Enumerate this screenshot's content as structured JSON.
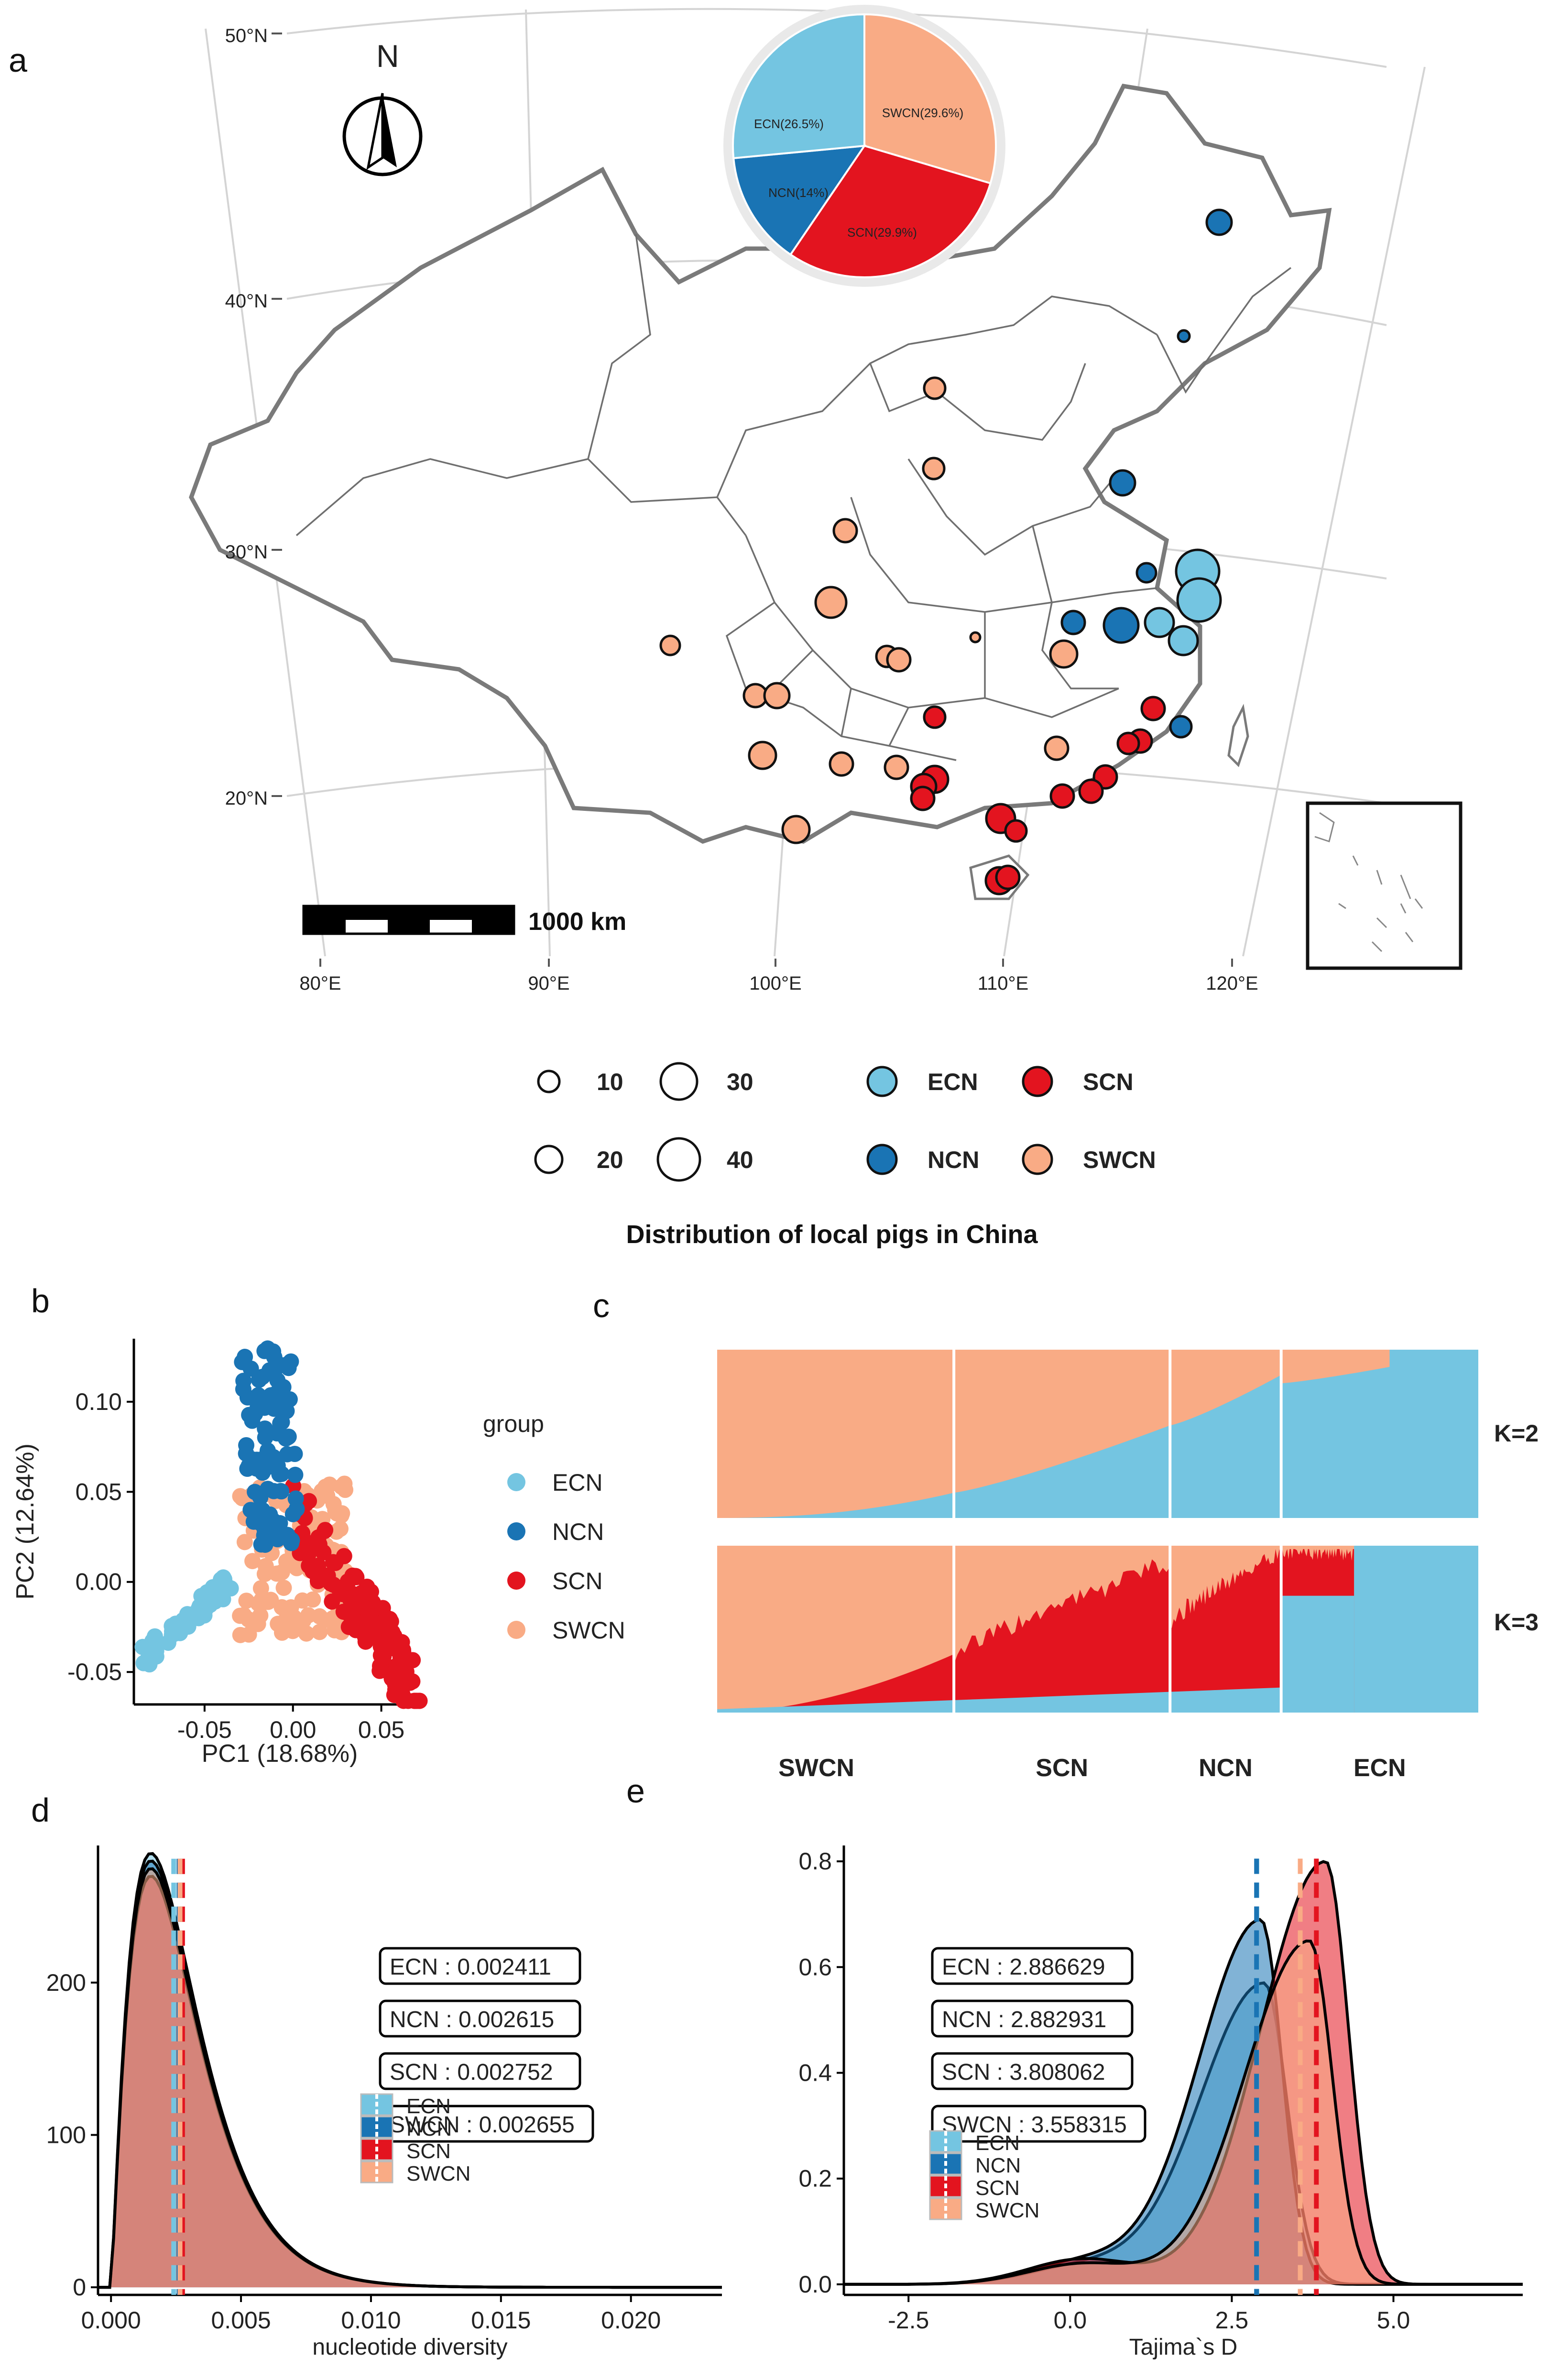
{
  "colors": {
    "ECN": "#74c5e1",
    "NCN": "#1a74b4",
    "SCN": "#e3141f",
    "SWCN": "#f9ab85",
    "background": "#ffffff"
  },
  "panel_letters": [
    "a",
    "b",
    "c",
    "d",
    "e"
  ],
  "map": {
    "compass_label": "N",
    "lat_labels": [
      "50°N",
      "40°N",
      "30°N",
      "20°N"
    ],
    "lon_labels": [
      "80°E",
      "90°E",
      "100°E",
      "110°E",
      "120°E"
    ],
    "scale_bar_label": "1000 km",
    "size_legend": [
      "10",
      "30",
      "20",
      "40"
    ],
    "group_legend": [
      "ECN",
      "SCN",
      "NCN",
      "SWCN"
    ],
    "caption": "Distribution of local pigs in China",
    "pie": {
      "labels": [
        "SWCN(29.6%)",
        "SCN(29.9%)",
        "NCN(14%)",
        "ECN(26.5%)"
      ],
      "percent": [
        29.6,
        29.9,
        14.0,
        26.5
      ]
    }
  },
  "chart_data": [
    {
      "type": "scatter",
      "panel": "b",
      "xlabel": "PC1 (18.68%)",
      "ylabel": "PC2 (12.64%)",
      "xticks": [
        "-0.05",
        "0.00",
        "0.05"
      ],
      "yticks": [
        "-0.05",
        "0.00",
        "0.05",
        "0.10"
      ],
      "xlim": [
        -0.09,
        0.075
      ],
      "ylim": [
        -0.068,
        0.135
      ],
      "legend_title": "group",
      "legend": [
        "ECN",
        "NCN",
        "SCN",
        "SWCN"
      ],
      "clusters": [
        {
          "name": "ECN",
          "x_range": [
            -0.085,
            -0.035
          ],
          "y_range": [
            -0.04,
            0.03
          ]
        },
        {
          "name": "NCN",
          "x_range": [
            -0.03,
            0.01
          ],
          "y_range": [
            0.02,
            0.13
          ]
        },
        {
          "name": "SCN",
          "x_range": [
            0.0,
            0.07
          ],
          "y_range": [
            -0.065,
            0.09
          ]
        },
        {
          "name": "SWCN",
          "x_range": [
            -0.03,
            0.03
          ],
          "y_range": [
            -0.04,
            0.06
          ]
        }
      ]
    },
    {
      "type": "area",
      "panel": "c",
      "k_labels": [
        "K=2",
        "K=3"
      ],
      "group_labels": [
        "SWCN",
        "SCN",
        "NCN",
        "ECN"
      ],
      "group_widths": [
        0.311,
        0.284,
        0.146,
        0.259
      ]
    },
    {
      "type": "area",
      "panel": "d",
      "xlabel": "nucleotide diversity",
      "xticks": [
        "0.000",
        "0.005",
        "0.010",
        "0.015",
        "0.020"
      ],
      "yticks": [
        "0",
        "100",
        "200"
      ],
      "xlim": [
        -0.0005,
        0.0235
      ],
      "ylim": [
        -5,
        290
      ],
      "series": [
        {
          "name": "ECN",
          "mean": 0.002411,
          "peak_x": 0.0015,
          "peak_y": 285
        },
        {
          "name": "NCN",
          "mean": 0.002615,
          "peak_x": 0.0016,
          "peak_y": 280
        },
        {
          "name": "SCN",
          "mean": 0.002752,
          "peak_x": 0.0016,
          "peak_y": 270
        },
        {
          "name": "SWCN",
          "mean": 0.002655,
          "peak_x": 0.0016,
          "peak_y": 275
        }
      ],
      "labels": [
        "ECN : 0.002411",
        "NCN : 0.002615",
        "SCN : 0.002752",
        "SWCN : 0.002655"
      ],
      "legend": [
        "ECN",
        "NCN",
        "SCN",
        "SWCN"
      ]
    },
    {
      "type": "area",
      "panel": "e",
      "xlabel": "Tajima`s D",
      "xticks": [
        "-2.5",
        "0.0",
        "2.5",
        "5.0"
      ],
      "yticks": [
        "0.0",
        "0.2",
        "0.4",
        "0.6",
        "0.8"
      ],
      "xlim": [
        -3.5,
        7.0
      ],
      "ylim": [
        -0.02,
        0.83
      ],
      "series": [
        {
          "name": "ECN",
          "mean": 2.886629,
          "peak_x": 3.0,
          "peak_y": 0.57
        },
        {
          "name": "NCN",
          "mean": 2.882931,
          "peak_x": 2.95,
          "peak_y": 0.69
        },
        {
          "name": "SCN",
          "mean": 3.808062,
          "peak_x": 3.95,
          "peak_y": 0.8
        },
        {
          "name": "SWCN",
          "mean": 3.558315,
          "peak_x": 3.7,
          "peak_y": 0.65
        }
      ],
      "labels": [
        "ECN : 2.886629",
        "NCN : 2.882931",
        "SCN : 3.808062",
        "SWCN : 3.558315"
      ],
      "legend": [
        "ECN",
        "NCN",
        "SCN",
        "SWCN"
      ]
    }
  ]
}
